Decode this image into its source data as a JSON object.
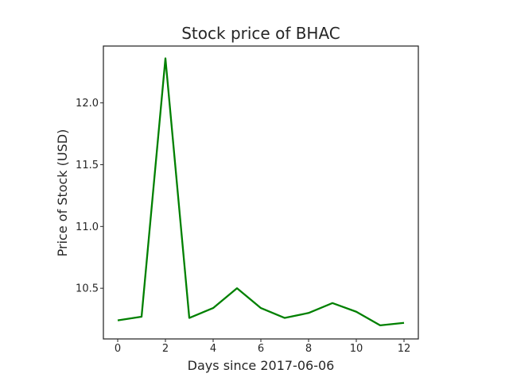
{
  "chart_data": {
    "type": "line",
    "title": "Stock price of BHAC",
    "xlabel": "Days since 2017-06-06",
    "ylabel": "Price of Stock (USD)",
    "xlim": [
      -0.6,
      12.6
    ],
    "ylim": [
      10.09,
      12.46
    ],
    "x_ticks": [
      0,
      2,
      4,
      6,
      8,
      10,
      12
    ],
    "x_tick_labels": [
      "0",
      "2",
      "4",
      "6",
      "8",
      "10",
      "12"
    ],
    "y_ticks": [
      10.5,
      11.0,
      11.5,
      12.0
    ],
    "y_tick_labels": [
      "10.5",
      "11.0",
      "11.5",
      "12.0"
    ],
    "grid": false,
    "series": [
      {
        "name": "BHAC",
        "color": "#008000",
        "x": [
          0,
          1,
          2,
          3,
          4,
          5,
          6,
          7,
          8,
          9,
          10,
          11,
          12
        ],
        "values": [
          10.24,
          10.27,
          12.36,
          10.26,
          10.34,
          10.5,
          10.34,
          10.26,
          10.3,
          10.38,
          10.31,
          10.2,
          10.22
        ]
      }
    ]
  }
}
